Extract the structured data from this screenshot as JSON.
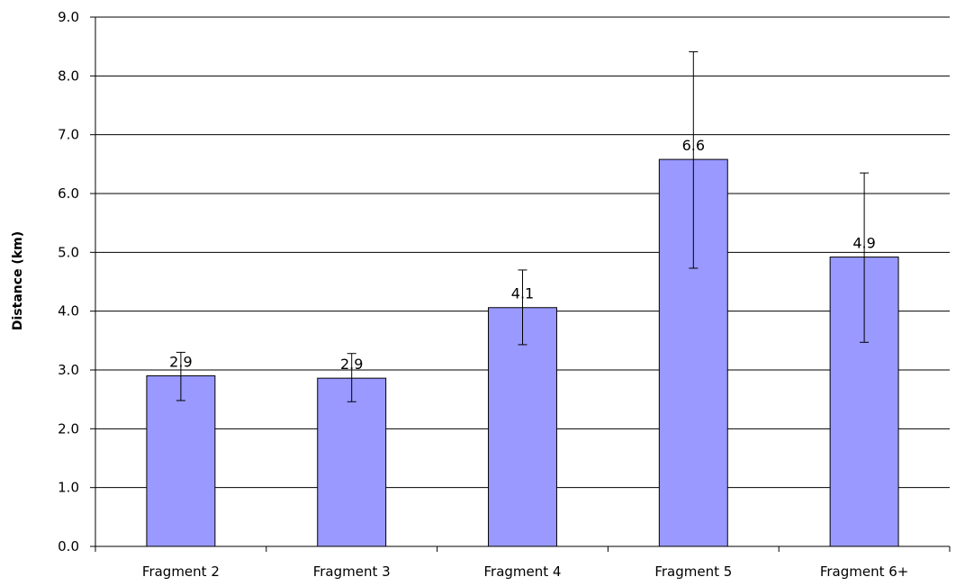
{
  "chart_data": {
    "type": "bar",
    "title": "",
    "xlabel": "",
    "ylabel": "Distance (km)",
    "categories": [
      "Fragment 2",
      "Fragment 3",
      "Fragment 4",
      "Fragment 5",
      "Fragment 6+"
    ],
    "values": [
      2.9,
      2.86,
      4.06,
      6.58,
      4.92
    ],
    "data_labels": [
      "2.9",
      "2.9",
      "4.1",
      "6.6",
      "4.9"
    ],
    "error_bars": [
      {
        "low": 2.48,
        "high": 3.3
      },
      {
        "low": 2.46,
        "high": 3.28
      },
      {
        "low": 3.43,
        "high": 4.7
      },
      {
        "low": 4.73,
        "high": 8.41
      },
      {
        "low": 3.47,
        "high": 6.35
      }
    ],
    "ylim": [
      0,
      9
    ],
    "yticks": [
      "0.0",
      "1.0",
      "2.0",
      "3.0",
      "4.0",
      "5.0",
      "6.0",
      "7.0",
      "8.0",
      "9.0"
    ],
    "grid": true,
    "legend": "none",
    "colors": {
      "bar_fill": "#9999ff",
      "bar_stroke": "#000000",
      "grid": "#000000",
      "axis": "#000000",
      "background": "#ffffff"
    }
  }
}
